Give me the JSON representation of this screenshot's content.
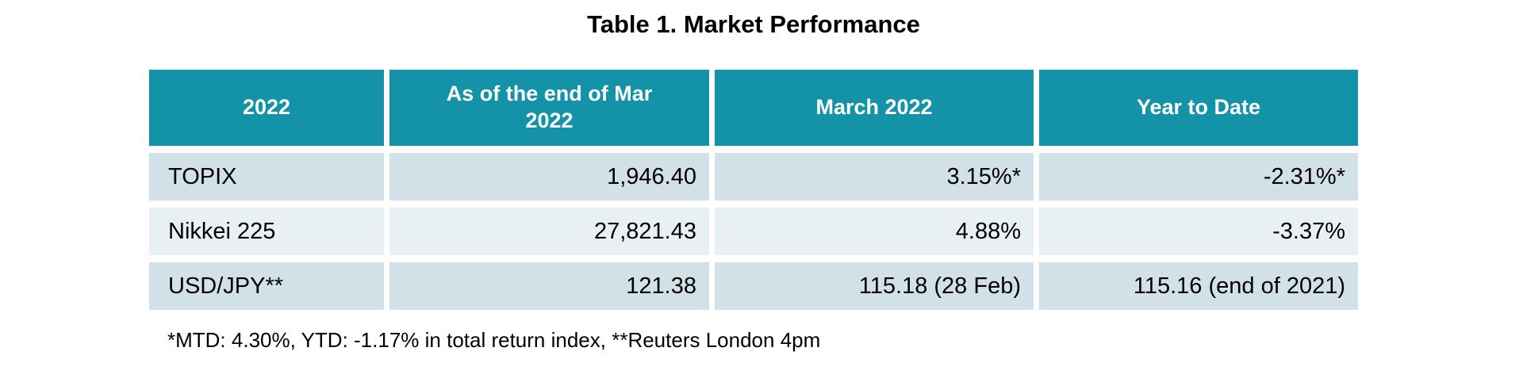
{
  "title": "Table 1. Market Performance",
  "table": {
    "headers": [
      "2022",
      "As of the end of Mar 2022",
      "March 2022",
      "Year to Date"
    ],
    "rows": [
      {
        "label": "TOPIX",
        "values": [
          "1,946.40",
          "3.15%*",
          "-2.31%*"
        ]
      },
      {
        "label": "Nikkei 225",
        "values": [
          "27,821.43",
          "4.88%",
          "-3.37%"
        ]
      },
      {
        "label": "USD/JPY**",
        "values": [
          "121.38",
          "115.18 (28 Feb)",
          "115.16 (end of 2021)"
        ]
      }
    ]
  },
  "footnote": "*MTD: 4.30%, YTD: -1.17% in total return index, **Reuters London 4pm",
  "colors": {
    "header_bg": "#1492A8",
    "header_text": "#FFFFFF",
    "row_odd_bg": "#D2E1E8",
    "row_even_bg": "#E8F0F4",
    "body_text": "#000000",
    "page_bg": "#FFFFFF"
  }
}
